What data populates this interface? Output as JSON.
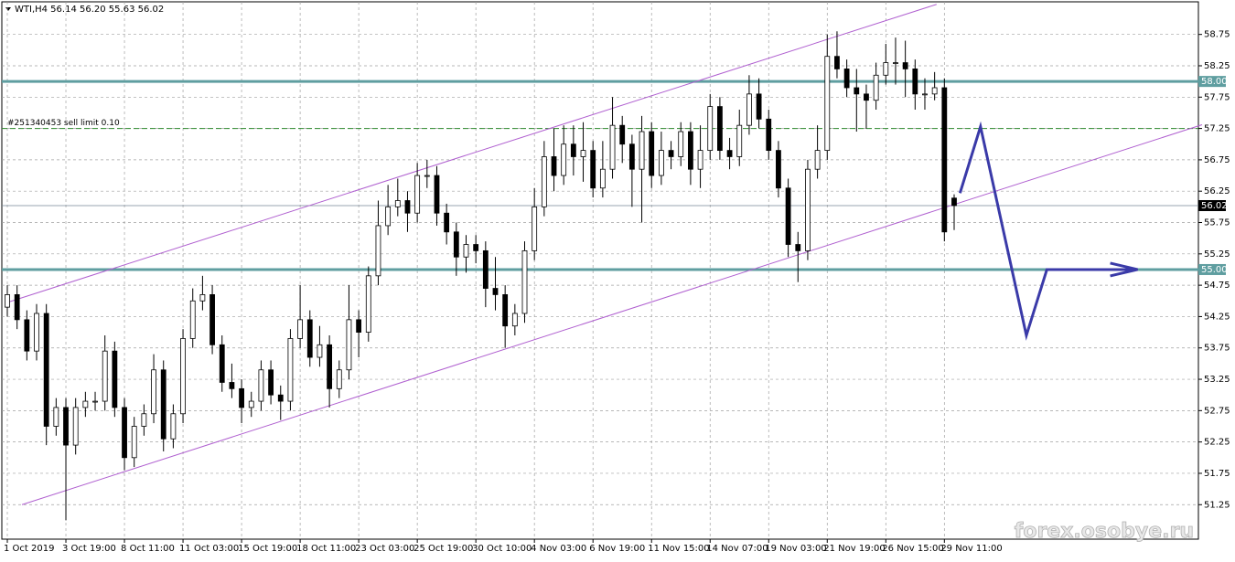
{
  "chart_data": {
    "type": "candlestick",
    "title": "WTI,H4  56.14 56.20 55.63 56.02",
    "categories": [
      "1 Oct 2019",
      null,
      null,
      null,
      null,
      null,
      "3 Oct 19:00",
      null,
      null,
      null,
      null,
      null,
      "8 Oct 11:00",
      null,
      null,
      null,
      null,
      null,
      "11 Oct 03:00",
      null,
      null,
      null,
      null,
      null,
      "15 Oct 19:00",
      null,
      null,
      null,
      null,
      null,
      "18 Oct 11:00",
      null,
      null,
      null,
      null,
      null,
      "23 Oct 03:00",
      null,
      null,
      null,
      null,
      null,
      "25 Oct 19:00",
      null,
      null,
      null,
      null,
      null,
      "30 Oct 10:00",
      null,
      null,
      null,
      null,
      null,
      "4 Nov 03:00",
      null,
      null,
      null,
      null,
      null,
      "6 Nov 19:00",
      null,
      null,
      null,
      null,
      null,
      "11 Nov 15:00",
      null,
      null,
      null,
      null,
      null,
      "14 Nov 07:00",
      null,
      null,
      null,
      null,
      null,
      "19 Nov 03:00",
      null,
      null,
      null,
      null,
      null,
      "21 Nov 19:00",
      null,
      null,
      null,
      null,
      null,
      "26 Nov 15:00",
      null,
      null,
      null,
      null,
      null,
      "29 Nov 11:00",
      null
    ],
    "candles": [
      [
        54.4,
        54.75,
        54.25,
        54.6
      ],
      [
        54.6,
        54.75,
        54.05,
        54.2
      ],
      [
        54.2,
        54.35,
        53.55,
        53.7
      ],
      [
        53.7,
        54.45,
        53.55,
        54.3
      ],
      [
        54.3,
        54.45,
        52.2,
        52.5
      ],
      [
        52.5,
        52.95,
        52.35,
        52.8
      ],
      [
        52.8,
        52.95,
        51.0,
        52.2
      ],
      [
        52.2,
        52.95,
        52.05,
        52.8
      ],
      [
        52.8,
        53.05,
        52.65,
        52.9
      ],
      [
        52.9,
        53.05,
        52.75,
        52.9
      ],
      [
        52.9,
        53.95,
        52.75,
        53.7
      ],
      [
        53.7,
        53.85,
        52.65,
        52.8
      ],
      [
        52.8,
        52.95,
        51.8,
        52.0
      ],
      [
        52.0,
        52.65,
        51.85,
        52.5
      ],
      [
        52.5,
        52.85,
        52.35,
        52.7
      ],
      [
        52.7,
        53.65,
        52.55,
        53.4
      ],
      [
        53.4,
        53.55,
        52.1,
        52.3
      ],
      [
        52.3,
        52.85,
        52.15,
        52.7
      ],
      [
        52.7,
        54.05,
        52.55,
        53.9
      ],
      [
        53.9,
        54.7,
        53.75,
        54.5
      ],
      [
        54.5,
        54.9,
        54.35,
        54.6
      ],
      [
        54.6,
        54.75,
        53.65,
        53.8
      ],
      [
        53.8,
        53.95,
        53.05,
        53.2
      ],
      [
        53.2,
        53.5,
        52.95,
        53.1
      ],
      [
        53.1,
        53.25,
        52.55,
        52.8
      ],
      [
        52.8,
        53.05,
        52.65,
        52.9
      ],
      [
        52.9,
        53.55,
        52.75,
        53.4
      ],
      [
        53.4,
        53.55,
        52.85,
        53.0
      ],
      [
        53.0,
        53.15,
        52.6,
        52.9
      ],
      [
        52.9,
        54.05,
        52.75,
        53.9
      ],
      [
        53.9,
        54.75,
        53.75,
        54.2
      ],
      [
        54.2,
        54.35,
        53.45,
        53.6
      ],
      [
        53.6,
        54.1,
        53.45,
        53.8
      ],
      [
        53.8,
        53.95,
        52.8,
        53.1
      ],
      [
        53.1,
        53.55,
        52.95,
        53.4
      ],
      [
        53.4,
        54.75,
        53.25,
        54.2
      ],
      [
        54.2,
        54.35,
        53.6,
        54.0
      ],
      [
        54.0,
        55.05,
        53.85,
        54.9
      ],
      [
        54.9,
        56.1,
        54.75,
        55.7
      ],
      [
        55.7,
        56.35,
        55.55,
        56.0
      ],
      [
        56.0,
        56.45,
        55.85,
        56.1
      ],
      [
        56.1,
        56.25,
        55.6,
        55.9
      ],
      [
        55.9,
        56.7,
        55.75,
        56.5
      ],
      [
        56.5,
        56.75,
        56.3,
        56.5
      ],
      [
        56.5,
        56.65,
        55.7,
        55.9
      ],
      [
        55.9,
        56.05,
        55.4,
        55.6
      ],
      [
        55.6,
        55.75,
        54.9,
        55.2
      ],
      [
        55.2,
        55.55,
        54.95,
        55.4
      ],
      [
        55.4,
        55.55,
        55.1,
        55.3
      ],
      [
        55.3,
        55.45,
        54.4,
        54.7
      ],
      [
        54.7,
        55.2,
        54.35,
        54.6
      ],
      [
        54.6,
        54.75,
        53.75,
        54.1
      ],
      [
        54.1,
        54.45,
        53.95,
        54.3
      ],
      [
        54.3,
        55.45,
        54.15,
        55.3
      ],
      [
        55.3,
        56.3,
        55.15,
        56.0
      ],
      [
        56.0,
        57.05,
        55.85,
        56.8
      ],
      [
        56.8,
        57.25,
        56.25,
        56.5
      ],
      [
        56.5,
        57.3,
        56.35,
        57.0
      ],
      [
        57.0,
        57.3,
        56.5,
        56.8
      ],
      [
        56.8,
        57.35,
        56.4,
        56.9
      ],
      [
        56.9,
        57.05,
        56.15,
        56.3
      ],
      [
        56.3,
        57.05,
        56.15,
        56.6
      ],
      [
        56.6,
        57.75,
        56.45,
        57.3
      ],
      [
        57.3,
        57.45,
        56.7,
        57.0
      ],
      [
        57.0,
        57.15,
        56.0,
        56.6
      ],
      [
        56.6,
        57.45,
        55.75,
        57.2
      ],
      [
        57.2,
        57.35,
        56.3,
        56.5
      ],
      [
        56.5,
        57.2,
        56.35,
        56.9
      ],
      [
        56.9,
        57.05,
        56.6,
        56.8
      ],
      [
        56.8,
        57.35,
        56.65,
        57.2
      ],
      [
        57.2,
        57.35,
        56.35,
        56.6
      ],
      [
        56.6,
        57.3,
        56.3,
        56.9
      ],
      [
        56.9,
        57.8,
        56.75,
        57.6
      ],
      [
        57.6,
        57.75,
        56.75,
        56.9
      ],
      [
        56.9,
        57.1,
        56.6,
        56.8
      ],
      [
        56.8,
        57.55,
        56.65,
        57.3
      ],
      [
        57.3,
        58.1,
        57.15,
        57.8
      ],
      [
        57.8,
        58.05,
        57.25,
        57.4
      ],
      [
        57.4,
        57.55,
        56.75,
        56.9
      ],
      [
        56.9,
        57.05,
        56.15,
        56.3
      ],
      [
        56.3,
        56.45,
        55.2,
        55.4
      ],
      [
        55.4,
        55.6,
        54.8,
        55.3
      ],
      [
        55.3,
        56.75,
        55.15,
        56.6
      ],
      [
        56.6,
        57.3,
        56.45,
        56.9
      ],
      [
        56.9,
        58.75,
        56.75,
        58.4
      ],
      [
        58.4,
        58.8,
        58.05,
        58.2
      ],
      [
        58.2,
        58.35,
        57.75,
        57.9
      ],
      [
        57.9,
        58.2,
        57.2,
        57.8
      ],
      [
        57.8,
        57.95,
        57.25,
        57.7
      ],
      [
        57.7,
        58.3,
        57.55,
        58.1
      ],
      [
        58.1,
        58.6,
        57.95,
        58.3
      ],
      [
        58.3,
        58.7,
        57.95,
        58.3
      ],
      [
        58.3,
        58.65,
        57.75,
        58.2
      ],
      [
        58.2,
        58.35,
        57.55,
        57.8
      ],
      [
        57.8,
        58.05,
        57.55,
        57.8
      ],
      [
        57.8,
        58.15,
        57.7,
        57.9
      ],
      [
        57.9,
        58.05,
        55.45,
        55.6
      ],
      [
        56.14,
        56.2,
        55.63,
        56.02
      ]
    ],
    "ylim": [
      50.7,
      59.27
    ],
    "yticks": [
      51.25,
      51.75,
      52.25,
      52.75,
      53.25,
      53.75,
      54.25,
      54.75,
      55.25,
      55.75,
      56.25,
      56.75,
      57.25,
      57.75,
      58.25,
      58.75
    ],
    "grid": true,
    "levels": [
      {
        "value": 58,
        "label": "58.00",
        "color": "#5f9ea0"
      },
      {
        "value": 55,
        "label": "55.00",
        "color": "#5f9ea0"
      }
    ],
    "current_price": {
      "value": 56.02,
      "label": "56.02",
      "color": "#778899"
    },
    "order": {
      "value": 57.25,
      "label": "#251340453 sell limit 0.10",
      "color": "#2e8b2e"
    },
    "channels": [
      {
        "color": "#b060d0",
        "x": [
          0.1,
          95.2
        ],
        "y": [
          54.48,
          59.23
        ]
      },
      {
        "color": "#b060d0",
        "x": [
          1.5,
          122.4
        ],
        "y": [
          51.25,
          57.31
        ]
      }
    ],
    "forecast": {
      "color": "#3a3aa8",
      "x": [
        97.6,
        99.7,
        104.4,
        106.5,
        115.8
      ],
      "y": [
        56.22,
        57.28,
        53.95,
        55.0,
        55.0
      ]
    },
    "watermark": "forex.osobye.ru"
  }
}
